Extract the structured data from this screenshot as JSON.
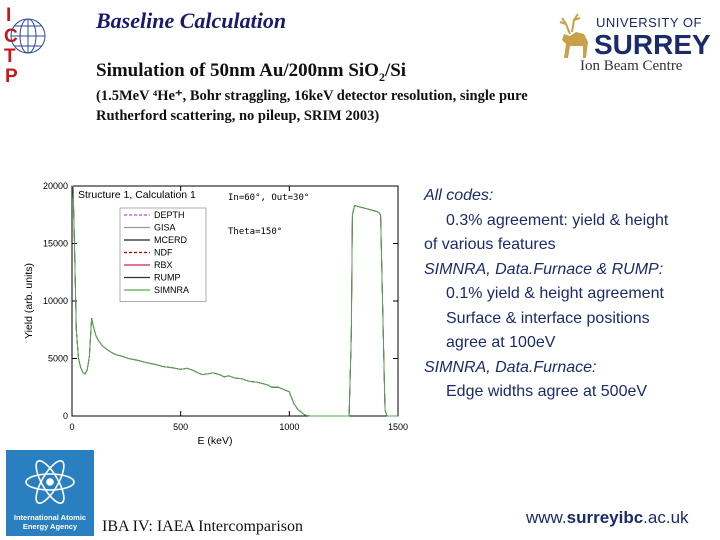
{
  "header": {
    "title": "Baseline Calculation",
    "subtitle_main": "Simulation of 50nm Au/200nm SiO",
    "subtitle_sub": "2",
    "subtitle_tail": "/Si",
    "params_line1": "(1.5MeV ⁴He⁺,  Bohr straggling, 16keV detector resolution, single pure",
    "params_line2": "Rutherford scattering, no pileup, SRIM 2003)"
  },
  "logos": {
    "ictp_letters": [
      "I",
      "C",
      "T",
      "P"
    ],
    "university_of": "UNIVERSITY OF",
    "surrey": "SURREY",
    "ion_beam_centre": "Ion Beam Centre",
    "iaea_name_line1": "International Atomic",
    "iaea_name_line2": "Energy Agency"
  },
  "chart_data": {
    "type": "line",
    "title": "Structure 1, Calculation 1",
    "annotations": [
      "In=60°, Out=30°",
      "Theta=150°"
    ],
    "xlabel": "E (keV)",
    "ylabel": "Yield (arb. units)",
    "xlim": [
      0,
      1500
    ],
    "ylim": [
      0,
      20000
    ],
    "xticks": [
      0,
      500,
      1000,
      1500
    ],
    "yticks": [
      0,
      5000,
      10000,
      15000,
      20000
    ],
    "legend_position": "top-right",
    "legend": [
      "DEPTH",
      "GISA",
      "MCERD",
      "NDF",
      "RBX",
      "RUMP",
      "SIMNRA"
    ],
    "series_colors": [
      "#cc44cc",
      "#999999",
      "#222222",
      "#aa0000",
      "#cc2266",
      "#333333",
      "#55aa55"
    ],
    "x": [
      0,
      5,
      10,
      20,
      30,
      40,
      50,
      60,
      70,
      80,
      90,
      100,
      110,
      120,
      140,
      160,
      180,
      200,
      230,
      260,
      300,
      340,
      380,
      420,
      460,
      500,
      530,
      560,
      580,
      600,
      620,
      650,
      680,
      700,
      720,
      750,
      780,
      800,
      820,
      850,
      880,
      900,
      920,
      950,
      980,
      1000,
      1020,
      1040,
      1060,
      1070,
      1080,
      1090,
      1100,
      1150,
      1200,
      1250,
      1275,
      1285,
      1290,
      1300,
      1320,
      1340,
      1360,
      1380,
      1400,
      1410,
      1420,
      1430,
      1440,
      1450,
      1500
    ],
    "values": [
      20000,
      20000,
      16000,
      7500,
      5000,
      4200,
      3800,
      3650,
      4000,
      5200,
      8500,
      7700,
      7000,
      6600,
      6100,
      5800,
      5550,
      5350,
      5200,
      5000,
      4850,
      4650,
      4500,
      4300,
      4200,
      4050,
      4150,
      3950,
      3750,
      3600,
      3650,
      3750,
      3600,
      3400,
      3500,
      3300,
      3250,
      3100,
      3000,
      2950,
      2800,
      2700,
      2500,
      2500,
      2250,
      2100,
      1100,
      550,
      250,
      100,
      50,
      20,
      0,
      0,
      0,
      0,
      0,
      7000,
      17500,
      18300,
      18200,
      18100,
      18000,
      17900,
      17800,
      17700,
      17500,
      9000,
      500,
      0,
      0
    ]
  },
  "panel": {
    "all_codes_head": "All codes:",
    "all_codes_1": "0.3% agreement:  yield &  height",
    "all_codes_2": "of various features",
    "codes3_head": "SIMNRA, Data.Furnace & RUMP:",
    "codes3_1": "0.1% yield & height   agreement",
    "codes3_2": "Surface & interface positions",
    "codes3_3": "agree at 100eV",
    "codes2_head": "SIMNRA, Data.Furnace:",
    "codes2_1": "Edge widths agree at 500eV"
  },
  "footer": {
    "event": "IBA IV:  IAEA Intercomparison",
    "url_pre": "www.",
    "url_bold": "surreyibc",
    "url_post": ".ac.uk"
  }
}
